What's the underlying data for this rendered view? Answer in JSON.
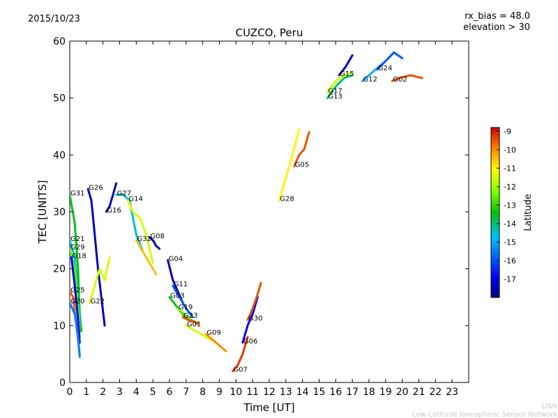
{
  "header": {
    "date": "2015/10/23",
    "title": "CUZCO, Peru",
    "rx_bias": "rx_bias = 48.0",
    "elevation": "elevation > 30"
  },
  "footer": {
    "line1": "LISN",
    "line2": "Low-Latitude Ionospheric Sensor Network"
  },
  "colorbar": {
    "label": "Latitude",
    "min": -18,
    "max": -8.8,
    "ticks": [
      "-9",
      "-10",
      "-11",
      "-12",
      "-13",
      "-14",
      "-15",
      "-16",
      "-17"
    ]
  },
  "chart_data": {
    "type": "scatter",
    "title": "CUZCO, Peru",
    "xlabel": "Time [UT]",
    "ylabel": "TEC [UNITS]",
    "xlim": [
      0,
      24
    ],
    "ylim": [
      0,
      60
    ],
    "xticks": [
      "0",
      "1",
      "2",
      "3",
      "4",
      "5",
      "6",
      "7",
      "8",
      "9",
      "10",
      "11",
      "12",
      "13",
      "14",
      "15",
      "16",
      "17",
      "18",
      "19",
      "20",
      "21",
      "22",
      "23"
    ],
    "yticks": [
      "0",
      "10",
      "20",
      "30",
      "40",
      "50",
      "60"
    ],
    "series": [
      {
        "name": "G31",
        "lat": -13.5,
        "points": [
          [
            0,
            33
          ],
          [
            0.3,
            28
          ],
          [
            0.5,
            20
          ],
          [
            0.6,
            12
          ],
          [
            0.7,
            9
          ]
        ]
      },
      {
        "name": "G21",
        "lat": -14.5,
        "points": [
          [
            0,
            25
          ],
          [
            0.3,
            22
          ],
          [
            0.5,
            15
          ],
          [
            0.6,
            10
          ]
        ]
      },
      {
        "name": "G29",
        "lat": -12.5,
        "points": [
          [
            0,
            23.5
          ],
          [
            0.3,
            20
          ],
          [
            0.5,
            13
          ],
          [
            0.6,
            8
          ]
        ]
      },
      {
        "name": "G18",
        "lat": -17,
        "points": [
          [
            0.1,
            22
          ],
          [
            0.3,
            17
          ],
          [
            0.5,
            11
          ],
          [
            0.6,
            7
          ]
        ]
      },
      {
        "name": "G25",
        "lat": -9.5,
        "points": [
          [
            0,
            16
          ],
          [
            0.2,
            15
          ],
          [
            0.4,
            10
          ],
          [
            0.6,
            5
          ]
        ]
      },
      {
        "name": "G20",
        "lat": -15.5,
        "points": [
          [
            0,
            14
          ],
          [
            0.3,
            12
          ],
          [
            0.5,
            8
          ],
          [
            0.6,
            4.5
          ]
        ]
      },
      {
        "name": "G26",
        "lat": -17.5,
        "points": [
          [
            1.1,
            34
          ],
          [
            1.3,
            32
          ],
          [
            1.5,
            26
          ],
          [
            1.7,
            20
          ],
          [
            1.9,
            15
          ],
          [
            2.1,
            10
          ]
        ]
      },
      {
        "name": "G22",
        "lat": -11.5,
        "points": [
          [
            1.2,
            14
          ],
          [
            1.5,
            17
          ],
          [
            1.8,
            20
          ],
          [
            2.1,
            18
          ],
          [
            2.4,
            22
          ]
        ]
      },
      {
        "name": "G16",
        "lat": -17.5,
        "points": [
          [
            2.2,
            30
          ],
          [
            2.4,
            31
          ],
          [
            2.6,
            33
          ],
          [
            2.8,
            35
          ]
        ]
      },
      {
        "name": "G27",
        "lat": -14.5,
        "points": [
          [
            2.8,
            33
          ],
          [
            3.2,
            33
          ],
          [
            3.6,
            32
          ],
          [
            4.0,
            26
          ],
          [
            4.4,
            23
          ]
        ]
      },
      {
        "name": "G14",
        "lat": -11.5,
        "points": [
          [
            3.5,
            32
          ],
          [
            3.8,
            30
          ],
          [
            4.2,
            29
          ],
          [
            4.6,
            26
          ],
          [
            5.0,
            21
          ]
        ]
      },
      {
        "name": "G32",
        "lat": -10.5,
        "points": [
          [
            4.0,
            25
          ],
          [
            4.4,
            23
          ],
          [
            4.8,
            21
          ],
          [
            5.2,
            19
          ]
        ]
      },
      {
        "name": "G08",
        "lat": -17.5,
        "points": [
          [
            4.8,
            25.5
          ],
          [
            5.0,
            25
          ],
          [
            5.2,
            24
          ],
          [
            5.4,
            23.5
          ]
        ]
      },
      {
        "name": "G04",
        "lat": -17.5,
        "points": [
          [
            5.9,
            21.5
          ],
          [
            6.2,
            18
          ],
          [
            6.5,
            16
          ],
          [
            6.8,
            14
          ]
        ]
      },
      {
        "name": "G11",
        "lat": -16,
        "points": [
          [
            6.2,
            17
          ],
          [
            6.6,
            15
          ],
          [
            7.0,
            13
          ],
          [
            7.4,
            11.5
          ]
        ]
      },
      {
        "name": "G03",
        "lat": -13.5,
        "points": [
          [
            6.0,
            15
          ],
          [
            6.4,
            13.5
          ],
          [
            6.8,
            12
          ],
          [
            7.2,
            11
          ]
        ]
      },
      {
        "name": "G19",
        "lat": -12.5,
        "points": [
          [
            6.5,
            13
          ],
          [
            6.9,
            12
          ],
          [
            7.3,
            11
          ],
          [
            7.7,
            10.5
          ]
        ]
      },
      {
        "name": "G23",
        "lat": -9.5,
        "points": [
          [
            6.8,
            11.5
          ],
          [
            7.1,
            11
          ],
          [
            7.4,
            10.8
          ],
          [
            7.7,
            10.3
          ]
        ]
      },
      {
        "name": "G01",
        "lat": -11.5,
        "points": [
          [
            7.0,
            10
          ],
          [
            7.6,
            9
          ],
          [
            8.2,
            8
          ],
          [
            8.8,
            7
          ]
        ]
      },
      {
        "name": "G09",
        "lat": -10,
        "points": [
          [
            8.2,
            8.5
          ],
          [
            8.6,
            7.5
          ],
          [
            9.0,
            6.5
          ],
          [
            9.4,
            5.5
          ]
        ]
      },
      {
        "name": "G07",
        "lat": -9.3,
        "points": [
          [
            9.8,
            2
          ],
          [
            10.1,
            3
          ],
          [
            10.4,
            5
          ],
          [
            10.7,
            8
          ]
        ]
      },
      {
        "name": "G06",
        "lat": -17,
        "points": [
          [
            10.4,
            7
          ],
          [
            10.7,
            10
          ],
          [
            11.0,
            12
          ],
          [
            11.3,
            15
          ]
        ]
      },
      {
        "name": "G30",
        "lat": -9.5,
        "points": [
          [
            10.7,
            11
          ],
          [
            11.0,
            13
          ],
          [
            11.3,
            15.5
          ],
          [
            11.5,
            17.5
          ]
        ]
      },
      {
        "name": "G28",
        "lat": -11,
        "points": [
          [
            12.6,
            32
          ],
          [
            13.0,
            36
          ],
          [
            13.4,
            40
          ],
          [
            13.8,
            44.5
          ]
        ]
      },
      {
        "name": "G05",
        "lat": -9.5,
        "points": [
          [
            13.5,
            38
          ],
          [
            13.8,
            40
          ],
          [
            14.1,
            41
          ],
          [
            14.4,
            44
          ]
        ]
      },
      {
        "name": "G17",
        "lat": -11.5,
        "points": [
          [
            15.5,
            51
          ],
          [
            16.0,
            53
          ],
          [
            16.5,
            54
          ],
          [
            17.0,
            54.5
          ]
        ]
      },
      {
        "name": "G13",
        "lat": -14,
        "points": [
          [
            15.5,
            50
          ],
          [
            16.0,
            52
          ],
          [
            16.5,
            53.5
          ],
          [
            17.0,
            54
          ]
        ]
      },
      {
        "name": "G15",
        "lat": -17.5,
        "points": [
          [
            16.2,
            54
          ],
          [
            16.6,
            55.5
          ],
          [
            17.0,
            57.5
          ]
        ]
      },
      {
        "name": "G12",
        "lat": -15,
        "points": [
          [
            17.6,
            53
          ],
          [
            18.0,
            54
          ],
          [
            18.4,
            55
          ],
          [
            18.8,
            56
          ]
        ]
      },
      {
        "name": "G24",
        "lat": -16,
        "points": [
          [
            18.5,
            55
          ],
          [
            19.0,
            56.5
          ],
          [
            19.5,
            58
          ],
          [
            20.0,
            57
          ]
        ]
      },
      {
        "name": "G02",
        "lat": -9.5,
        "points": [
          [
            19.4,
            53
          ],
          [
            19.8,
            53.5
          ],
          [
            20.5,
            54
          ],
          [
            21.2,
            53.5
          ]
        ]
      }
    ]
  }
}
